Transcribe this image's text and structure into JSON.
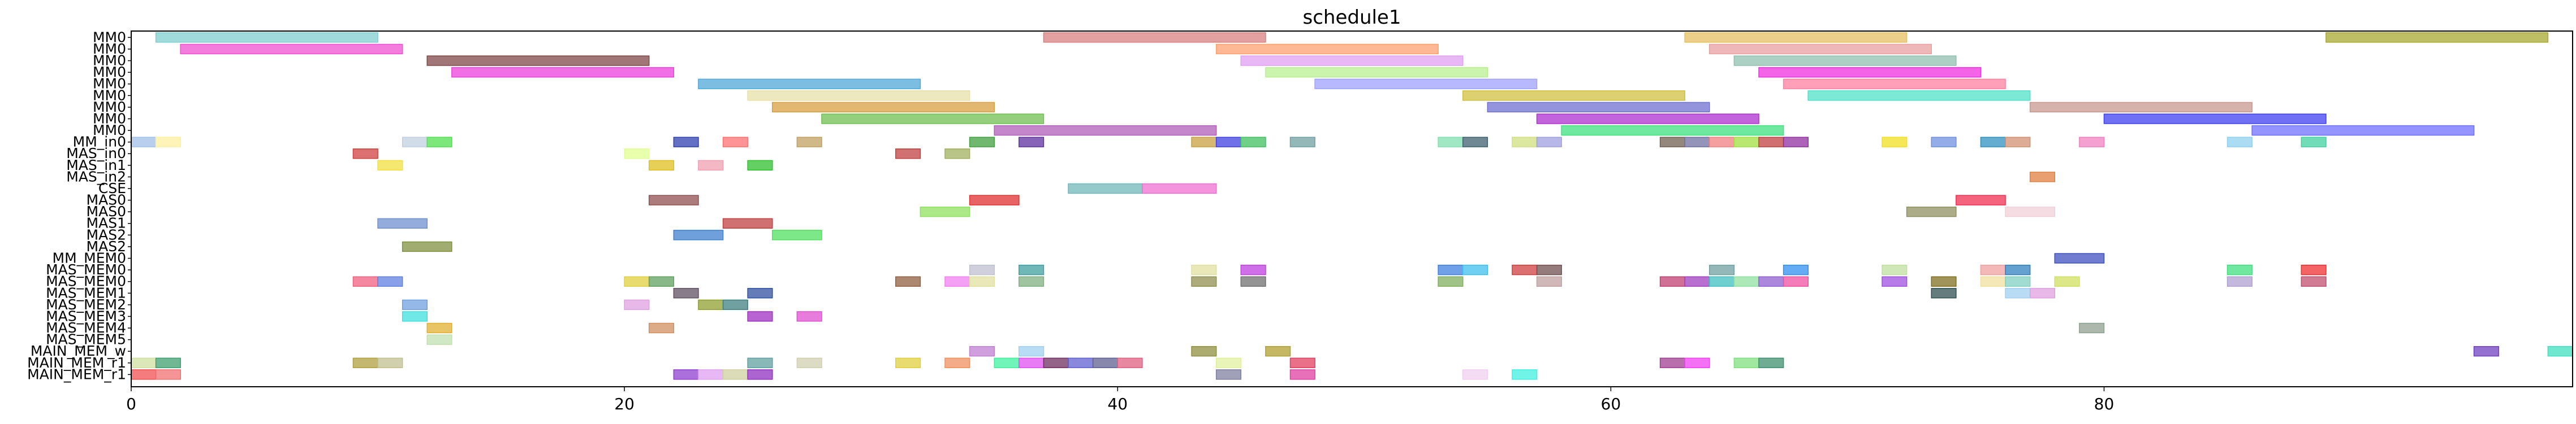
{
  "chart_data": {
    "type": "gantt",
    "title": "schedule1",
    "xlabel": "",
    "ylabel": "",
    "xlim": [
      0,
      99
    ],
    "x_ticks": [
      0,
      20,
      40,
      60,
      80
    ],
    "grid": false,
    "rows": [
      "MM0",
      "MM0",
      "MM0",
      "MM0",
      "MM0",
      "MM0",
      "MM0",
      "MM0",
      "MM0",
      "MM_in0",
      "MAS_in0",
      "MAS_in1",
      "MAS_in2",
      "CSE",
      "MAS0",
      "MAS0",
      "MAS1",
      "MAS2",
      "MAS2",
      "MM_MEM0",
      "MAS_MEM0",
      "MAS_MEM0",
      "MAS_MEM1",
      "MAS_MEM2",
      "MAS_MEM3",
      "MAS_MEM4",
      "MAS_MEM5",
      "MAIN_MEM_w",
      "MAIN_MEM_r1",
      "MAIN_MEM_r1"
    ],
    "tasks": [
      {
        "row": 0,
        "start": 1,
        "end": 10,
        "color": "#7fcfcf"
      },
      {
        "row": 0,
        "start": 37,
        "end": 46,
        "color": "#d88080"
      },
      {
        "row": 0,
        "start": 63,
        "end": 72,
        "color": "#e5c060"
      },
      {
        "row": 0,
        "start": 89,
        "end": 98,
        "color": "#a8a830"
      },
      {
        "row": 1,
        "start": 2,
        "end": 11,
        "color": "#f050d0"
      },
      {
        "row": 1,
        "start": 44,
        "end": 53,
        "color": "#ffa070"
      },
      {
        "row": 1,
        "start": 64,
        "end": 73,
        "color": "#e8a0a0"
      },
      {
        "row": 2,
        "start": 12,
        "end": 21,
        "color": "#804848"
      },
      {
        "row": 2,
        "start": 45,
        "end": 54,
        "color": "#e0a0f0"
      },
      {
        "row": 2,
        "start": 65,
        "end": 74,
        "color": "#90c0b0"
      },
      {
        "row": 3,
        "start": 13,
        "end": 22,
        "color": "#ee40dd"
      },
      {
        "row": 3,
        "start": 46,
        "end": 55,
        "color": "#b8f090"
      },
      {
        "row": 3,
        "start": 66,
        "end": 75,
        "color": "#f030e0"
      },
      {
        "row": 4,
        "start": 23,
        "end": 32,
        "color": "#50a8d8"
      },
      {
        "row": 4,
        "start": 48,
        "end": 57,
        "color": "#a0a0ff"
      },
      {
        "row": 4,
        "start": 67,
        "end": 76,
        "color": "#ff80a0"
      },
      {
        "row": 5,
        "start": 25,
        "end": 34,
        "color": "#e8e0a8"
      },
      {
        "row": 5,
        "start": 54,
        "end": 63,
        "color": "#d0c040"
      },
      {
        "row": 5,
        "start": 68,
        "end": 77,
        "color": "#50e0c8"
      },
      {
        "row": 6,
        "start": 26,
        "end": 35,
        "color": "#d8a040"
      },
      {
        "row": 6,
        "start": 55,
        "end": 64,
        "color": "#7070d0"
      },
      {
        "row": 6,
        "start": 77,
        "end": 86,
        "color": "#c89890"
      },
      {
        "row": 7,
        "start": 28,
        "end": 37,
        "color": "#70c050"
      },
      {
        "row": 7,
        "start": 57,
        "end": 66,
        "color": "#b030d0"
      },
      {
        "row": 7,
        "start": 80,
        "end": 89,
        "color": "#4040f0"
      },
      {
        "row": 8,
        "start": 35,
        "end": 44,
        "color": "#b060b8"
      },
      {
        "row": 8,
        "start": 58,
        "end": 67,
        "color": "#40e080"
      },
      {
        "row": 8,
        "start": 86,
        "end": 95,
        "color": "#7070ff"
      },
      {
        "row": 9,
        "start": 0,
        "end": 1,
        "color": "#a0c0e8"
      },
      {
        "row": 9,
        "start": 1,
        "end": 2,
        "color": "#fff0a0"
      },
      {
        "row": 9,
        "start": 11,
        "end": 12,
        "color": "#c0d0e0"
      },
      {
        "row": 9,
        "start": 12,
        "end": 13,
        "color": "#50e050"
      },
      {
        "row": 9,
        "start": 22,
        "end": 23,
        "color": "#3040b0"
      },
      {
        "row": 9,
        "start": 24,
        "end": 25,
        "color": "#ff7070"
      },
      {
        "row": 9,
        "start": 27,
        "end": 28,
        "color": "#c0a060"
      },
      {
        "row": 9,
        "start": 34,
        "end": 35,
        "color": "#40a040"
      },
      {
        "row": 9,
        "start": 36,
        "end": 37,
        "color": "#6030a0"
      },
      {
        "row": 9,
        "start": 43,
        "end": 44,
        "color": "#c8a040"
      },
      {
        "row": 9,
        "start": 44,
        "end": 45,
        "color": "#4040e0"
      },
      {
        "row": 9,
        "start": 45,
        "end": 46,
        "color": "#40c060"
      },
      {
        "row": 9,
        "start": 47,
        "end": 48,
        "color": "#70a0a0"
      },
      {
        "row": 9,
        "start": 53,
        "end": 54,
        "color": "#80e0b0"
      },
      {
        "row": 9,
        "start": 54,
        "end": 55,
        "color": "#406070"
      },
      {
        "row": 9,
        "start": 56,
        "end": 57,
        "color": "#d0e080"
      },
      {
        "row": 9,
        "start": 57,
        "end": 58,
        "color": "#a0a0e0"
      },
      {
        "row": 9,
        "start": 62,
        "end": 63,
        "color": "#706050"
      },
      {
        "row": 9,
        "start": 63,
        "end": 64,
        "color": "#7070a0"
      },
      {
        "row": 9,
        "start": 64,
        "end": 65,
        "color": "#f08080"
      },
      {
        "row": 9,
        "start": 65,
        "end": 66,
        "color": "#a0e040"
      },
      {
        "row": 9,
        "start": 66,
        "end": 67,
        "color": "#c04040"
      },
      {
        "row": 9,
        "start": 67,
        "end": 68,
        "color": "#9030a0"
      },
      {
        "row": 9,
        "start": 71,
        "end": 72,
        "color": "#f0e020"
      },
      {
        "row": 9,
        "start": 73,
        "end": 74,
        "color": "#7090e0"
      },
      {
        "row": 9,
        "start": 75,
        "end": 76,
        "color": "#3090c0"
      },
      {
        "row": 9,
        "start": 76,
        "end": 77,
        "color": "#d09070"
      },
      {
        "row": 9,
        "start": 79,
        "end": 80,
        "color": "#f080c0"
      },
      {
        "row": 9,
        "start": 85,
        "end": 86,
        "color": "#90d0f0"
      },
      {
        "row": 9,
        "start": 88,
        "end": 89,
        "color": "#40d0a0"
      },
      {
        "row": 10,
        "start": 9,
        "end": 10,
        "color": "#d04040"
      },
      {
        "row": 10,
        "start": 20,
        "end": 21,
        "color": "#e0ff90"
      },
      {
        "row": 10,
        "start": 31,
        "end": 32,
        "color": "#c04040"
      },
      {
        "row": 10,
        "start": 33,
        "end": 34,
        "color": "#a0b060"
      },
      {
        "row": 11,
        "start": 10,
        "end": 11,
        "color": "#f0e040"
      },
      {
        "row": 11,
        "start": 21,
        "end": 22,
        "color": "#e0c020"
      },
      {
        "row": 11,
        "start": 23,
        "end": 24,
        "color": "#f0a0b0"
      },
      {
        "row": 11,
        "start": 25,
        "end": 26,
        "color": "#30c030"
      },
      {
        "row": 12,
        "start": 77,
        "end": 78,
        "color": "#e08040"
      },
      {
        "row": 13,
        "start": 38,
        "end": 41,
        "color": "#70b8b8"
      },
      {
        "row": 13,
        "start": 41,
        "end": 44,
        "color": "#f070d0"
      },
      {
        "row": 14,
        "start": 21,
        "end": 23,
        "color": "#905050"
      },
      {
        "row": 14,
        "start": 34,
        "end": 36,
        "color": "#e03030"
      },
      {
        "row": 14,
        "start": 74,
        "end": 76,
        "color": "#f03050"
      },
      {
        "row": 15,
        "start": 32,
        "end": 34,
        "color": "#90e060"
      },
      {
        "row": 15,
        "start": 72,
        "end": 74,
        "color": "#909060"
      },
      {
        "row": 15,
        "start": 76,
        "end": 78,
        "color": "#f0d0d8"
      },
      {
        "row": 16,
        "start": 10,
        "end": 12,
        "color": "#7090d0"
      },
      {
        "row": 16,
        "start": 24,
        "end": 26,
        "color": "#c04040"
      },
      {
        "row": 17,
        "start": 22,
        "end": 24,
        "color": "#4080d0"
      },
      {
        "row": 17,
        "start": 26,
        "end": 28,
        "color": "#50e060"
      },
      {
        "row": 18,
        "start": 11,
        "end": 13,
        "color": "#809040"
      },
      {
        "row": 19,
        "start": 78,
        "end": 80,
        "color": "#4050c0"
      },
      {
        "row": 20,
        "start": 34,
        "end": 35,
        "color": "#c0c0d0"
      },
      {
        "row": 20,
        "start": 36,
        "end": 37,
        "color": "#40a0a0"
      },
      {
        "row": 20,
        "start": 43,
        "end": 44,
        "color": "#e0e0a0"
      },
      {
        "row": 20,
        "start": 45,
        "end": 46,
        "color": "#c040e0"
      },
      {
        "row": 20,
        "start": 53,
        "end": 54,
        "color": "#4080e0"
      },
      {
        "row": 20,
        "start": 54,
        "end": 55,
        "color": "#40c0f0"
      },
      {
        "row": 20,
        "start": 56,
        "end": 57,
        "color": "#d04040"
      },
      {
        "row": 20,
        "start": 57,
        "end": 58,
        "color": "#705050"
      },
      {
        "row": 20,
        "start": 64,
        "end": 65,
        "color": "#70a0a0"
      },
      {
        "row": 20,
        "start": 67,
        "end": 68,
        "color": "#3090f0"
      },
      {
        "row": 20,
        "start": 71,
        "end": 72,
        "color": "#c0e0a0"
      },
      {
        "row": 20,
        "start": 75,
        "end": 76,
        "color": "#f0a0a0"
      },
      {
        "row": 20,
        "start": 76,
        "end": 77,
        "color": "#3080c0"
      },
      {
        "row": 20,
        "start": 85,
        "end": 86,
        "color": "#40e080"
      },
      {
        "row": 20,
        "start": 88,
        "end": 89,
        "color": "#f03030"
      },
      {
        "row": 21,
        "start": 9,
        "end": 10,
        "color": "#f06080"
      },
      {
        "row": 21,
        "start": 10,
        "end": 11,
        "color": "#6080e0"
      },
      {
        "row": 21,
        "start": 20,
        "end": 21,
        "color": "#e0d040"
      },
      {
        "row": 21,
        "start": 21,
        "end": 22,
        "color": "#60a060"
      },
      {
        "row": 21,
        "start": 31,
        "end": 32,
        "color": "#906040"
      },
      {
        "row": 21,
        "start": 33,
        "end": 34,
        "color": "#f080f0"
      },
      {
        "row": 21,
        "start": 34,
        "end": 35,
        "color": "#e0e0a0"
      },
      {
        "row": 21,
        "start": 36,
        "end": 37,
        "color": "#80b080"
      },
      {
        "row": 21,
        "start": 43,
        "end": 44,
        "color": "#909050"
      },
      {
        "row": 21,
        "start": 45,
        "end": 46,
        "color": "#707070"
      },
      {
        "row": 21,
        "start": 53,
        "end": 54,
        "color": "#80b060"
      },
      {
        "row": 21,
        "start": 57,
        "end": 58,
        "color": "#c0a0a0"
      },
      {
        "row": 21,
        "start": 62,
        "end": 63,
        "color": "#c04070"
      },
      {
        "row": 21,
        "start": 63,
        "end": 64,
        "color": "#a040c0"
      },
      {
        "row": 21,
        "start": 64,
        "end": 65,
        "color": "#40c0c0"
      },
      {
        "row": 21,
        "start": 65,
        "end": 66,
        "color": "#90e0a0"
      },
      {
        "row": 21,
        "start": 66,
        "end": 67,
        "color": "#9060d0"
      },
      {
        "row": 21,
        "start": 67,
        "end": 68,
        "color": "#f050a0"
      },
      {
        "row": 21,
        "start": 71,
        "end": 72,
        "color": "#a050e0"
      },
      {
        "row": 21,
        "start": 73,
        "end": 74,
        "color": "#807020"
      },
      {
        "row": 21,
        "start": 75,
        "end": 76,
        "color": "#f0e0a0"
      },
      {
        "row": 21,
        "start": 76,
        "end": 77,
        "color": "#80d0c0"
      },
      {
        "row": 21,
        "start": 78,
        "end": 79,
        "color": "#d0e060"
      },
      {
        "row": 21,
        "start": 85,
        "end": 86,
        "color": "#b0a0d0"
      },
      {
        "row": 21,
        "start": 88,
        "end": 89,
        "color": "#c05070"
      },
      {
        "row": 22,
        "start": 22,
        "end": 23,
        "color": "#605060"
      },
      {
        "row": 22,
        "start": 25,
        "end": 26,
        "color": "#3050a0"
      },
      {
        "row": 22,
        "start": 73,
        "end": 74,
        "color": "#305050"
      },
      {
        "row": 22,
        "start": 76,
        "end": 77,
        "color": "#a0d0f0"
      },
      {
        "row": 22,
        "start": 77,
        "end": 78,
        "color": "#e0a0e0"
      },
      {
        "row": 23,
        "start": 11,
        "end": 12,
        "color": "#70a0e0"
      },
      {
        "row": 23,
        "start": 20,
        "end": 21,
        "color": "#e0a0e0"
      },
      {
        "row": 23,
        "start": 23,
        "end": 24,
        "color": "#90a030"
      },
      {
        "row": 23,
        "start": 24,
        "end": 25,
        "color": "#408080"
      },
      {
        "row": 24,
        "start": 11,
        "end": 12,
        "color": "#40e0e0"
      },
      {
        "row": 24,
        "start": 25,
        "end": 26,
        "color": "#a030c0"
      },
      {
        "row": 24,
        "start": 27,
        "end": 28,
        "color": "#e050d0"
      },
      {
        "row": 25,
        "start": 12,
        "end": 13,
        "color": "#e0b030"
      },
      {
        "row": 25,
        "start": 21,
        "end": 22,
        "color": "#d09060"
      },
      {
        "row": 25,
        "start": 79,
        "end": 80,
        "color": "#90a090"
      },
      {
        "row": 26,
        "start": 12,
        "end": 13,
        "color": "#c0e0b0"
      },
      {
        "row": 27,
        "start": 34,
        "end": 35,
        "color": "#c080d0"
      },
      {
        "row": 27,
        "start": 36,
        "end": 37,
        "color": "#a0d0f0"
      },
      {
        "row": 27,
        "start": 43,
        "end": 44,
        "color": "#909040"
      },
      {
        "row": 27,
        "start": 46,
        "end": 47,
        "color": "#b0a030"
      },
      {
        "row": 27,
        "start": 95,
        "end": 96,
        "color": "#7040c0"
      },
      {
        "row": 27,
        "start": 98,
        "end": 99,
        "color": "#40e0c0"
      },
      {
        "row": 28,
        "start": 0,
        "end": 1,
        "color": "#d0e0a0"
      },
      {
        "row": 28,
        "start": 1,
        "end": 2,
        "color": "#40a070"
      },
      {
        "row": 28,
        "start": 9,
        "end": 10,
        "color": "#b0a040"
      },
      {
        "row": 28,
        "start": 10,
        "end": 11,
        "color": "#c0c090"
      },
      {
        "row": 28,
        "start": 25,
        "end": 26,
        "color": "#60a0a0"
      },
      {
        "row": 28,
        "start": 27,
        "end": 28,
        "color": "#d0d0b0"
      },
      {
        "row": 28,
        "start": 31,
        "end": 32,
        "color": "#e0d040"
      },
      {
        "row": 28,
        "start": 33,
        "end": 34,
        "color": "#f09060"
      },
      {
        "row": 28,
        "start": 35,
        "end": 36,
        "color": "#40f0a0"
      },
      {
        "row": 28,
        "start": 36,
        "end": 37,
        "color": "#e050f0"
      },
      {
        "row": 28,
        "start": 37,
        "end": 38,
        "color": "#703060"
      },
      {
        "row": 28,
        "start": 38,
        "end": 39,
        "color": "#6060d0"
      },
      {
        "row": 28,
        "start": 39,
        "end": 40,
        "color": "#606090"
      },
      {
        "row": 28,
        "start": 40,
        "end": 41,
        "color": "#e06080"
      },
      {
        "row": 28,
        "start": 44,
        "end": 45,
        "color": "#e0f0a0"
      },
      {
        "row": 28,
        "start": 47,
        "end": 48,
        "color": "#e04060"
      },
      {
        "row": 28,
        "start": 62,
        "end": 63,
        "color": "#a04090"
      },
      {
        "row": 28,
        "start": 63,
        "end": 64,
        "color": "#f040f0"
      },
      {
        "row": 28,
        "start": 65,
        "end": 66,
        "color": "#80e080"
      },
      {
        "row": 28,
        "start": 66,
        "end": 67,
        "color": "#409070"
      },
      {
        "row": 29,
        "start": 0,
        "end": 1,
        "color": "#f05050"
      },
      {
        "row": 29,
        "start": 1,
        "end": 2,
        "color": "#f07070"
      },
      {
        "row": 29,
        "start": 22,
        "end": 23,
        "color": "#9040d0"
      },
      {
        "row": 29,
        "start": 23,
        "end": 24,
        "color": "#e0a0f0"
      },
      {
        "row": 29,
        "start": 24,
        "end": 25,
        "color": "#d0d0a0"
      },
      {
        "row": 29,
        "start": 25,
        "end": 26,
        "color": "#9030c0"
      },
      {
        "row": 29,
        "start": 44,
        "end": 45,
        "color": "#8080a0"
      },
      {
        "row": 29,
        "start": 47,
        "end": 48,
        "color": "#e040a0"
      },
      {
        "row": 29,
        "start": 54,
        "end": 55,
        "color": "#f0d0f0"
      },
      {
        "row": 29,
        "start": 56,
        "end": 57,
        "color": "#40f0e0"
      }
    ]
  }
}
